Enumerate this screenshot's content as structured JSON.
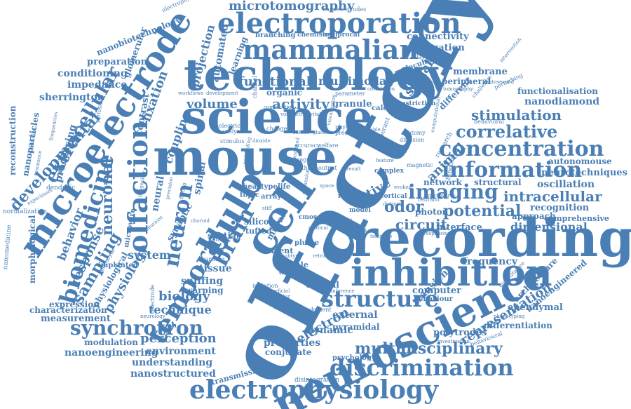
{
  "cloud": {
    "olfactory": "olfactory",
    "neuroscience": "neuroscience",
    "technology": "technology",
    "science": "science",
    "recording": "recording",
    "mouse": "mouse",
    "microelectrode": "microelectrode",
    "electroporation": "electroporation",
    "inhibition": "inhibition",
    "olfaction": "olfaction",
    "cell": "cell",
    "bulb": "bulb",
    "mammalian": "mammalian",
    "electrophysiology": "electrophysiology",
    "discrimination": "discrimination",
    "information": "information",
    "concentration": "concentration",
    "temporal": "temporal",
    "imaging": "imaging",
    "structure": "structure",
    "synchrotron": "synchrotron",
    "neuronal": "neuronal",
    "biomedicine": "biomedicine",
    "multidisciplinary": "multidisciplinary",
    "correlative": "correlative",
    "extracellular": "extracellular",
    "neuron": "neuron",
    "brain": "brain",
    "developmental": "developmental",
    "microtomography": "microtomography",
    "stimulation": "stimulation",
    "intracellular": "intracellular",
    "potential": "potential",
    "circuit": "circuit",
    "odor": "odor",
    "animal": "animal",
    "representation": "representation",
    "electron": "electron",
    "sampling": "sampling",
    "physiology": "physiology",
    "response": "response",
    "behavior": "behavior",
    "biology": "biology",
    "technique": "technique",
    "perception": "perception",
    "environment": "environment",
    "nanoengineering": "nanoengineering",
    "understanding": "understanding",
    "nanostructured": "nanostructured",
    "properties": "properties",
    "active": "active",
    "activity": "activity",
    "functional": "functional",
    "multimodal": "multimodal",
    "volume": "volume",
    "fixation": "fixation",
    "coupling": "coupling",
    "projection": "projection",
    "automated": "automated",
    "conditioning": "conditioning",
    "impedance": "impedance",
    "preparation": "preparation",
    "nanobiotechnology": "nanobiotechnology",
    "sherrington": "sherrington",
    "reconstruction": "reconstruction",
    "nanoparticles": "nanoparticles",
    "processing": "processing",
    "system": "system",
    "sniffing": "sniffing",
    "tissue": "tissue",
    "warping": "warping",
    "nanodiamond": "nanodiamond",
    "functionalisation": "functionalisation",
    "oscillation": "oscillation",
    "neurotechniques": "neurotechniques",
    "autonomouse": "autonomouse",
    "recognition": "recognition",
    "comprehensive": "comprehensive",
    "dimensional": "dimensional",
    "interface": "interface",
    "frequency": "frequency",
    "ependymal": "ependymal",
    "nanoengineered": "nanoengineered",
    "architecture": "architecture",
    "differentiation": "differentiation",
    "polytrodes": "polytrodes",
    "computer": "computer",
    "behaviour": "behaviour",
    "scalable": "scalable",
    "connectivity": "connectivity",
    "propagation": "propagation",
    "membrane": "membrane",
    "peripheral": "peripheral",
    "network": "network",
    "structural": "structural",
    "approach": "approach",
    "photon": "photon",
    "transient": "transient",
    "dynamic": "dynamic",
    "external": "external",
    "pyramidal": "pyramidal",
    "conjugate": "conjugate",
    "psychology": "psychology",
    "transmission": "transmission",
    "disintegration": "disintegration",
    "measurement": "measurement",
    "characterization": "characterization",
    "modulation": "modulation",
    "expression": "expression",
    "normalization": "normalization",
    "dendritic": "dendritic",
    "granule": "granule",
    "calcium": "calcium",
    "restriction": "restriction",
    "branching": "branching",
    "chemistry": "chemistry",
    "reciprocal": "reciprocal",
    "nanoelectrodes": "nanoelectrodes",
    "electrophysiological": "electrophysiological",
    "spatial": "spatial",
    "synaptic": "synaptic",
    "neural": "neural",
    "spinal": "spinal",
    "silicon": "silicon",
    "mitral": "mitral",
    "tufted": "tufted",
    "sample": "sample",
    "current": "current",
    "central": "central",
    "dendrite": "dendrite",
    "plume": "plume",
    "head": "head",
    "type": "type",
    "life": "life",
    "topic": "topic",
    "array": "array",
    "input": "input",
    "cmos": "cmos",
    "scanning": "scanning",
    "context": "context",
    "machine": "machine",
    "initiation": "initiation",
    "implanted": "implanted",
    "morphological": "morphological",
    "physiological": "physiological",
    "microwire": "microwire",
    "contrast": "contrast",
    "glomerular": "glomerular",
    "learning": "learning",
    "molecular": "molecular",
    "complex": "complex",
    "rapid": "rapid",
    "lesion": "lesion",
    "cortical": "cortical",
    "model": "model",
    "excites": "excites",
    "nanomedicine": "nanomedicine",
    "organic": "organic",
    "electrical": "electrical",
    "analysis": "analysis",
    "change": "change",
    "channel": "channel",
    "accuracy": "accuracy",
    "welfare": "welfare",
    "damage": "damage",
    "method": "method",
    "output": "output",
    "result": "result",
    "feature": "feature",
    "magnetic": "magnetic",
    "diffusion": "diffusion",
    "anatomy": "anatomy",
    "present": "present",
    "physical": "physical",
    "variable": "variable",
    "operant": "operant",
    "research": "research",
    "function": "function",
    "layer": "layer",
    "correlation": "correlation",
    "parameter": "parameter",
    "different": "different",
    "tomography": "tomography",
    "femtosecond": "femtosecond",
    "challenge": "challenge",
    "perturbing": "perturbing",
    "intervention": "intervention",
    "behavioral": "behavioral",
    "quantitative": "quantitative",
    "phenotyping": "phenotyping",
    "behavioural": "behavioural",
    "investigation": "investigation",
    "judgment": "judgment",
    "inference": "inference",
    "conductor": "conductor",
    "subsequent": "subsequent",
    "neurology": "neurology",
    "electrode": "electrode",
    "choroid": "choroid",
    "astrocyte": "astrocyte",
    "superficial": "superficial",
    "stimulus": "stimulus",
    "dioxide": "dioxide",
    "workflows": "workflows",
    "development": "development",
    "application": "application",
    "resonance": "resonance",
    "experiment": "experiment",
    "frequencies": "frequencies",
    "perfusion": "perfusion",
    "progenitor": "progenitor",
    "precision": "precision",
    "testing": "testing",
    "neuraxis": "neuraxis",
    "medical": "medical",
    "subtype": "subtype",
    "retrieval": "retrieval",
    "distinct": "distinct",
    "restraint": "restraint",
    "responsive": "responsive",
    "template": "template",
    "microwires": "microwires",
    "expansion": "expansion",
    "embedding": "embedding",
    "visualisation": "visualisation",
    "computational": "computational",
    "unstained": "unstained",
    "stiff": "stiff",
    "space": "space",
    "evolved": "evolved",
    "neuronal2": "combination",
    "small1": "volumetric",
    "small2": "heritable",
    "small3": "evoked",
    "small4": "sulfide",
    "small5": "glass"
  }
}
